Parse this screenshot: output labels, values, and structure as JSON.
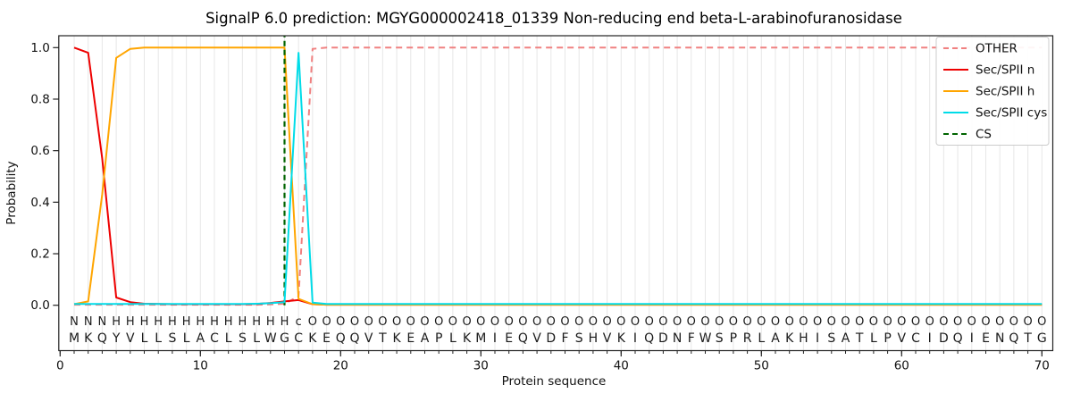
{
  "chart_data": {
    "type": "line",
    "title": "SignalP 6.0 prediction: MGYG000002418_01339 Non-reducing end beta-L-arabinofuranosidase",
    "xlabel": "Protein sequence",
    "ylabel": "Probability",
    "xlim": [
      -0.1,
      70.75
    ],
    "ylim": [
      -0.18,
      1.05
    ],
    "x_ticks": [
      0,
      10,
      20,
      30,
      40,
      50,
      60,
      70
    ],
    "y_ticks": [
      "0.0",
      "0.2",
      "0.4",
      "0.6",
      "0.8",
      "1.0"
    ],
    "grid": "vertical line per residue, light gray",
    "legend_position": "upper right",
    "x": [
      1,
      2,
      3,
      4,
      5,
      6,
      7,
      8,
      9,
      10,
      11,
      12,
      13,
      14,
      15,
      16,
      17,
      18,
      19,
      20,
      21,
      22,
      23,
      24,
      25,
      26,
      27,
      28,
      29,
      30,
      31,
      32,
      33,
      34,
      35,
      36,
      37,
      38,
      39,
      40,
      41,
      42,
      43,
      44,
      45,
      46,
      47,
      48,
      49,
      50,
      51,
      52,
      53,
      54,
      55,
      56,
      57,
      58,
      59,
      60,
      61,
      62,
      63,
      64,
      65,
      66,
      67,
      68,
      69,
      70
    ],
    "series": [
      {
        "name": "OTHER",
        "color": "#f08080",
        "style": "dashed",
        "values": [
          0.002,
          0.002,
          0.002,
          0.002,
          0.002,
          0.002,
          0.002,
          0.002,
          0.002,
          0.002,
          0.002,
          0.002,
          0.002,
          0.002,
          0.003,
          0.006,
          0.035,
          0.995,
          1.0,
          1.0,
          1.0,
          1.0,
          1.0,
          1.0,
          1.0,
          1.0,
          1.0,
          1.0,
          1.0,
          1.0,
          1.0,
          1.0,
          1.0,
          1.0,
          1.0,
          1.0,
          1.0,
          1.0,
          1.0,
          1.0,
          1.0,
          1.0,
          1.0,
          1.0,
          1.0,
          1.0,
          1.0,
          1.0,
          1.0,
          1.0,
          1.0,
          1.0,
          1.0,
          1.0,
          1.0,
          1.0,
          1.0,
          1.0,
          1.0,
          1.0,
          1.0,
          1.0,
          1.0,
          1.0,
          1.0,
          1.0,
          1.0,
          1.0,
          1.0,
          1.0
        ]
      },
      {
        "name": "Sec/SPII n",
        "color": "#ee0000",
        "style": "solid",
        "values": [
          1.0,
          0.98,
          0.57,
          0.03,
          0.012,
          0.006,
          0.005,
          0.004,
          0.004,
          0.004,
          0.004,
          0.004,
          0.004,
          0.005,
          0.009,
          0.015,
          0.02,
          0.004,
          0.002,
          0.002,
          0.002,
          0.002,
          0.002,
          0.002,
          0.002,
          0.002,
          0.002,
          0.002,
          0.002,
          0.002,
          0.002,
          0.002,
          0.002,
          0.002,
          0.002,
          0.002,
          0.002,
          0.002,
          0.002,
          0.002,
          0.002,
          0.002,
          0.002,
          0.002,
          0.002,
          0.002,
          0.002,
          0.002,
          0.002,
          0.002,
          0.002,
          0.002,
          0.002,
          0.002,
          0.002,
          0.002,
          0.002,
          0.002,
          0.002,
          0.002,
          0.002,
          0.002,
          0.002,
          0.002,
          0.002,
          0.002,
          0.002,
          0.002,
          0.002,
          0.002
        ]
      },
      {
        "name": "Sec/SPII h",
        "color": "#ffa500",
        "style": "solid",
        "values": [
          0.004,
          0.015,
          0.43,
          0.96,
          0.995,
          1.0,
          1.0,
          1.0,
          1.0,
          1.0,
          1.0,
          1.0,
          1.0,
          1.0,
          1.0,
          1.0,
          0.025,
          0.004,
          0.002,
          0.002,
          0.002,
          0.002,
          0.002,
          0.002,
          0.002,
          0.002,
          0.002,
          0.002,
          0.002,
          0.002,
          0.002,
          0.002,
          0.002,
          0.002,
          0.002,
          0.002,
          0.002,
          0.002,
          0.002,
          0.002,
          0.002,
          0.002,
          0.002,
          0.002,
          0.002,
          0.002,
          0.002,
          0.002,
          0.002,
          0.002,
          0.002,
          0.002,
          0.002,
          0.002,
          0.002,
          0.002,
          0.002,
          0.002,
          0.002,
          0.002,
          0.002,
          0.002,
          0.002,
          0.002,
          0.002,
          0.002,
          0.002,
          0.002,
          0.002,
          0.002
        ]
      },
      {
        "name": "Sec/SPII cys",
        "color": "#00dce8",
        "style": "solid",
        "values": [
          0.005,
          0.005,
          0.005,
          0.005,
          0.005,
          0.005,
          0.005,
          0.005,
          0.005,
          0.005,
          0.005,
          0.005,
          0.005,
          0.006,
          0.008,
          0.012,
          0.98,
          0.01,
          0.005,
          0.005,
          0.005,
          0.005,
          0.005,
          0.005,
          0.005,
          0.005,
          0.005,
          0.005,
          0.005,
          0.005,
          0.005,
          0.005,
          0.005,
          0.005,
          0.005,
          0.005,
          0.005,
          0.005,
          0.005,
          0.005,
          0.005,
          0.005,
          0.005,
          0.005,
          0.005,
          0.005,
          0.005,
          0.005,
          0.005,
          0.005,
          0.005,
          0.005,
          0.005,
          0.005,
          0.005,
          0.005,
          0.005,
          0.005,
          0.005,
          0.005,
          0.005,
          0.005,
          0.005,
          0.005,
          0.005,
          0.005,
          0.005,
          0.005,
          0.005,
          0.005
        ]
      }
    ],
    "cs_line": {
      "name": "CS",
      "x": 16,
      "color": "#006400",
      "style": "dashed"
    }
  },
  "legend": {
    "entries": [
      {
        "label": "OTHER",
        "color": "#f08080",
        "style": "dashed"
      },
      {
        "label": "Sec/SPII n",
        "color": "#ee0000",
        "style": "solid"
      },
      {
        "label": "Sec/SPII h",
        "color": "#ffa500",
        "style": "solid"
      },
      {
        "label": "Sec/SPII cys",
        "color": "#00dce8",
        "style": "solid"
      },
      {
        "label": "CS",
        "color": "#006400",
        "style": "dashed"
      }
    ]
  },
  "sequence": {
    "residues": "MKQYVLLSLACLSLWGCKEQQVTKEAPLKMIEQVDFSHVKIQDNFWSPRLAKHISATLPVCIDQIENQTG",
    "region_labels": "NNNHHHHHHHHHHHHHcOOOOOOOOOOOOOOOOOOOOOOOOOOOOOOOOOOOOOOOOOOOOOOOOOOOOO",
    "label_colors": {
      "N": "#ee0000",
      "H": "#ffa500",
      "c": "#22d5e5",
      "O": "#888888"
    },
    "residue_color": "#333333"
  }
}
